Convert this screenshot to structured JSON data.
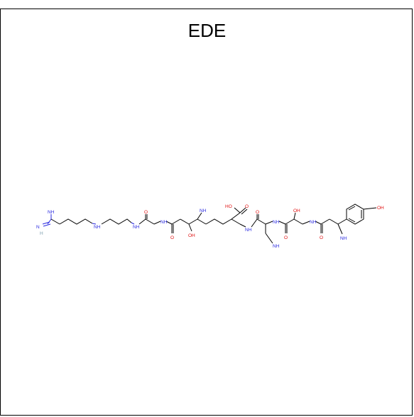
{
  "title": "EDE",
  "colors": {
    "nitrogen": "#2a2ae0",
    "oxygen": "#e01010",
    "carbon": "#000000",
    "hydrogen": "#7fa0b0"
  },
  "atom_labels": {
    "nh2_amidine": "NH",
    "n_imine": "N",
    "h_imine": "H",
    "nh_1": "NH",
    "nh_2": "NH",
    "o_1": "O",
    "nh_3": "NH",
    "o_2": "O",
    "oh_1": "OH",
    "nh2_1": "NH",
    "ho_acid": "HO",
    "o_acid": "O",
    "nh_4": "NH",
    "o_3": "O",
    "nh2_2": "NH",
    "nh_5": "NH",
    "oh_2": "OH",
    "o_4": "O",
    "nh_6": "NH",
    "o_5": "O",
    "nh2_3": "NH",
    "oh_phenol": "OH"
  }
}
